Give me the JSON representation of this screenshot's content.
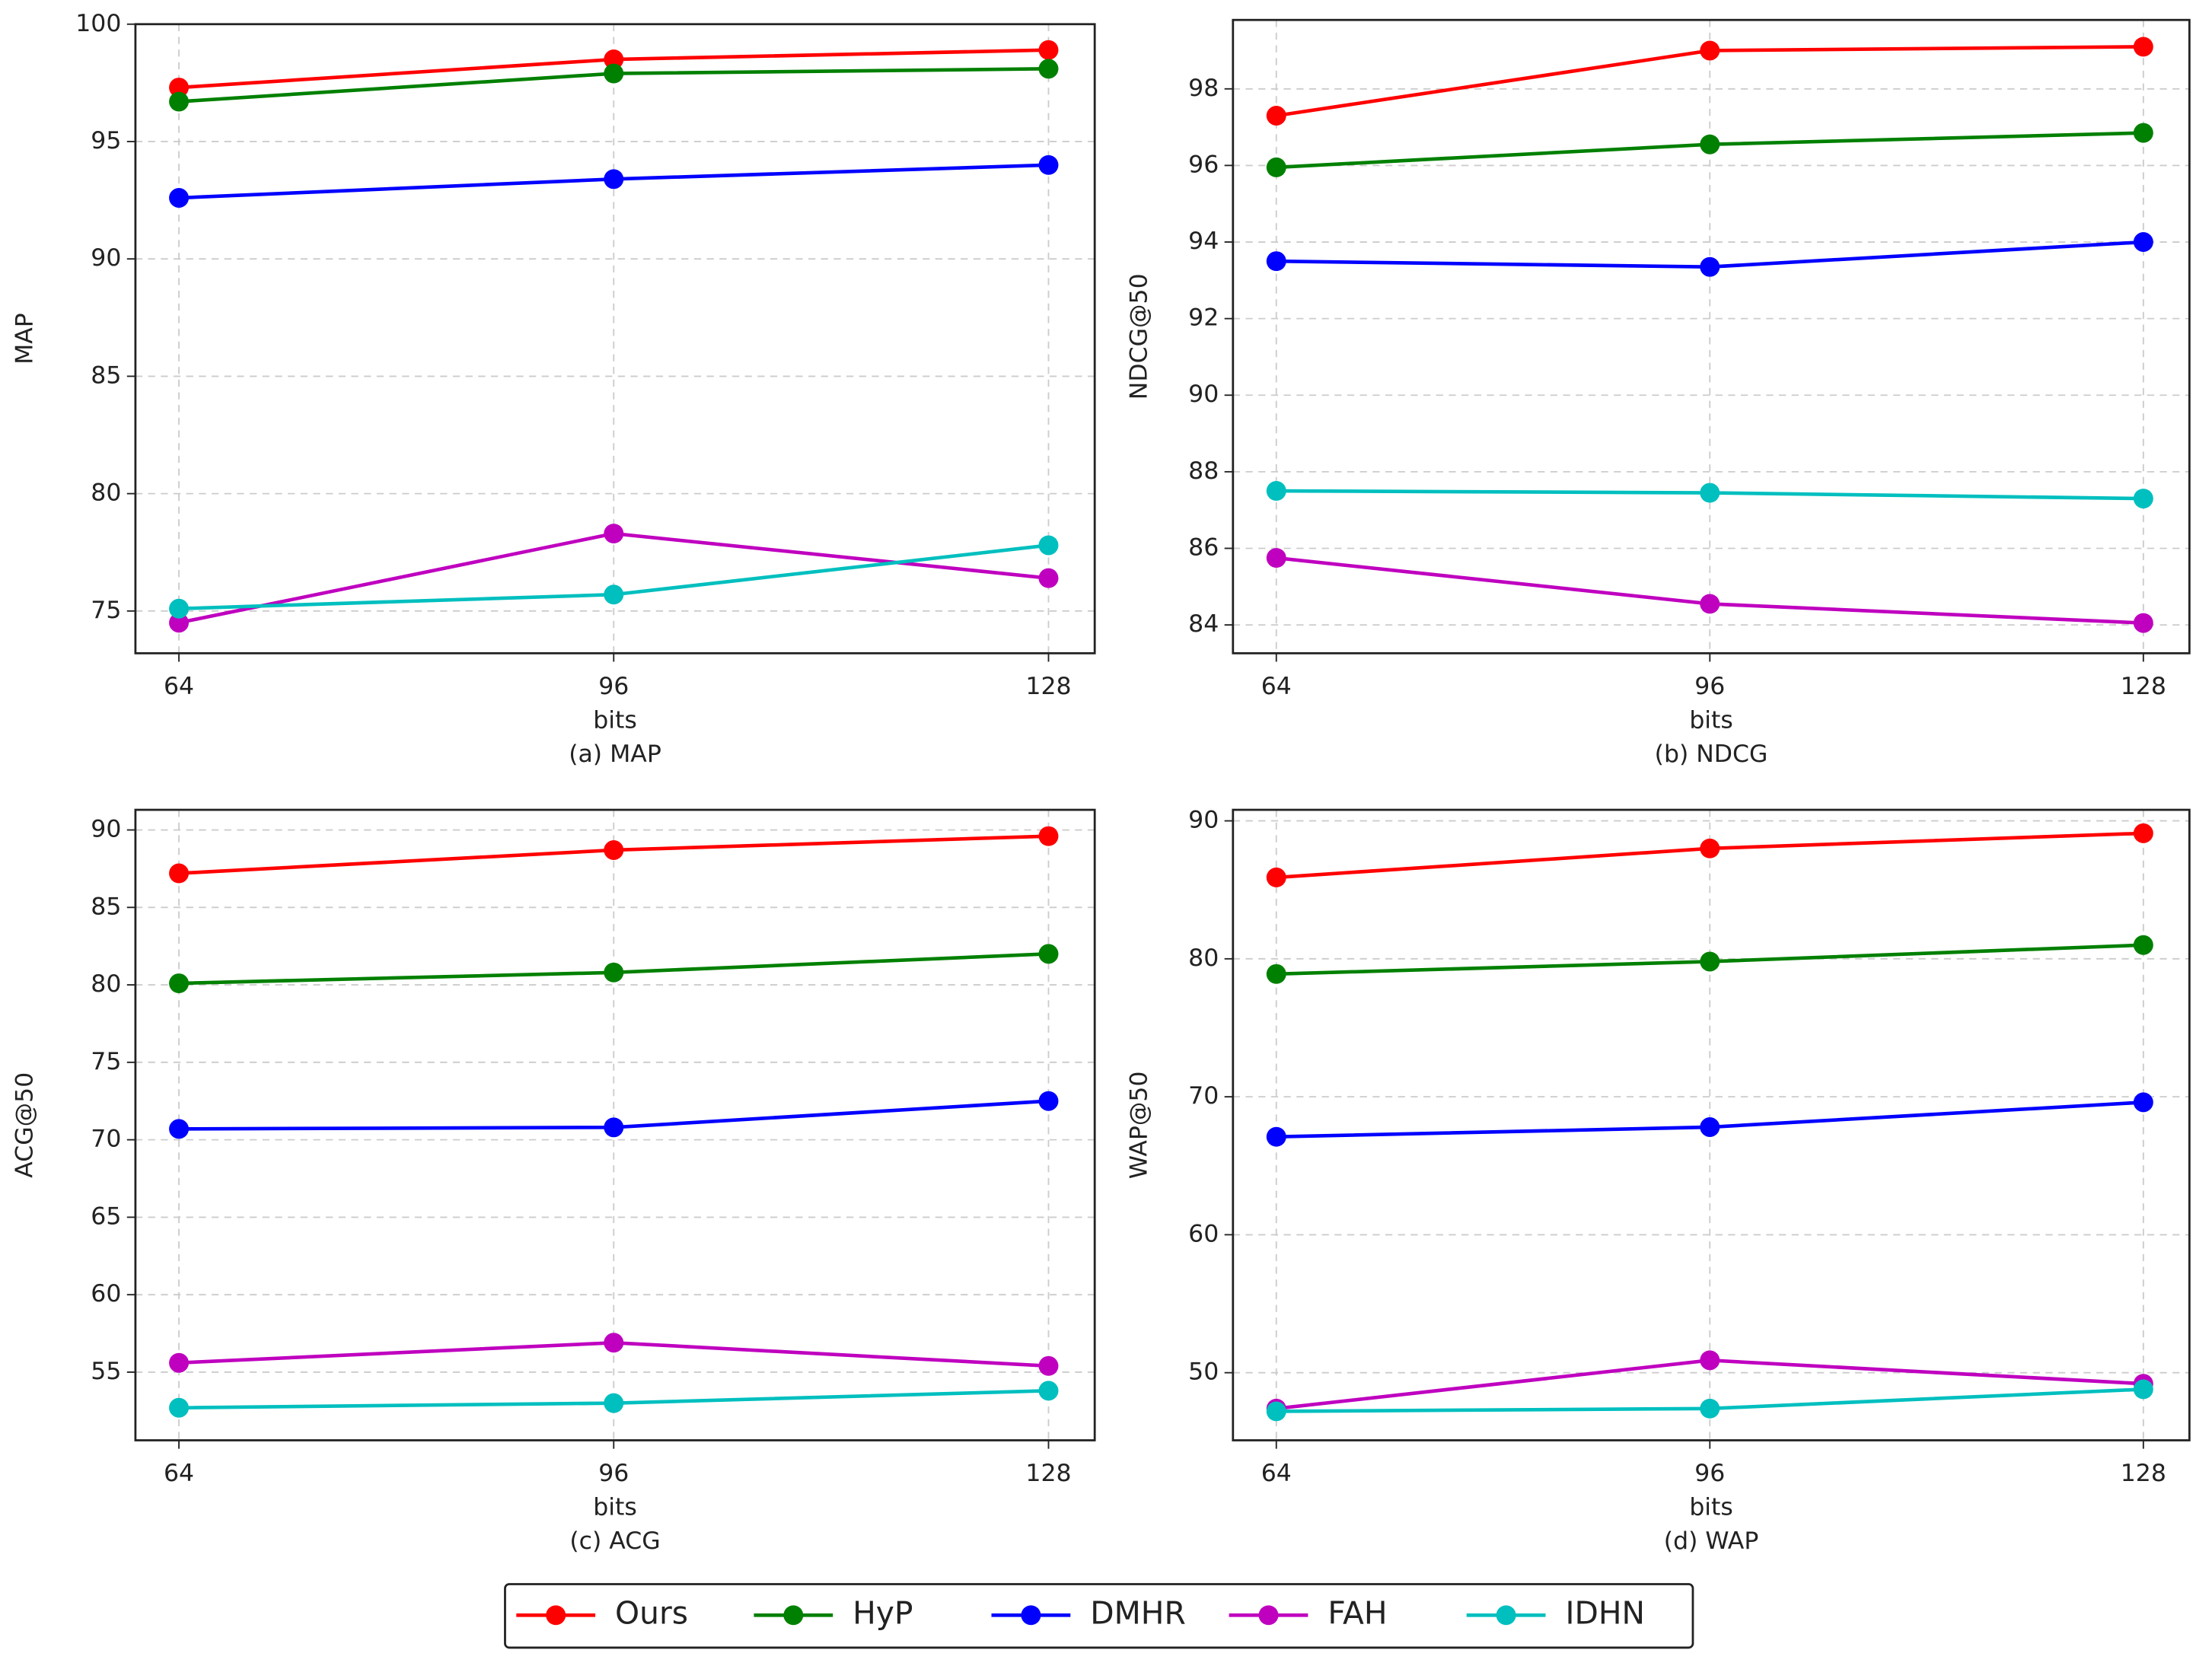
{
  "chart_data": [
    {
      "type": "line",
      "caption": "(a) MAP",
      "xlabel": "bits",
      "ylabel": "MAP",
      "x": [
        64,
        96,
        128
      ],
      "xlim": [
        60.8,
        131.4
      ],
      "xticks": [
        64,
        96,
        128
      ],
      "ylim": [
        73.2,
        100
      ],
      "yticks": [
        75,
        80,
        85,
        90,
        95,
        100
      ],
      "grid": true,
      "series": [
        {
          "name": "Ours",
          "color": "#ff0000",
          "values": [
            97.3,
            98.5,
            98.9
          ]
        },
        {
          "name": "HyP",
          "color": "#008000",
          "values": [
            96.7,
            97.9,
            98.1
          ]
        },
        {
          "name": "DMHR",
          "color": "#0000ff",
          "values": [
            92.6,
            93.4,
            94.0
          ]
        },
        {
          "name": "FAH",
          "color": "#bf00bf",
          "values": [
            74.5,
            78.3,
            76.4
          ]
        },
        {
          "name": "IDHN",
          "color": "#00bfbf",
          "values": [
            75.1,
            75.7,
            77.8
          ]
        }
      ]
    },
    {
      "type": "line",
      "caption": "(b) NDCG",
      "xlabel": "bits",
      "ylabel": "NDCG@50",
      "x": [
        64,
        96,
        128
      ],
      "xlim": [
        60.8,
        131.4
      ],
      "xticks": [
        64,
        96,
        128
      ],
      "ylim": [
        83.26,
        99.8
      ],
      "yticks": [
        84,
        86,
        88,
        90,
        92,
        94,
        96,
        98
      ],
      "grid": true,
      "series": [
        {
          "name": "Ours",
          "color": "#ff0000",
          "values": [
            97.3,
            99.0,
            99.1
          ]
        },
        {
          "name": "HyP",
          "color": "#008000",
          "values": [
            95.95,
            96.55,
            96.85
          ]
        },
        {
          "name": "DMHR",
          "color": "#0000ff",
          "values": [
            93.5,
            93.35,
            94.0
          ]
        },
        {
          "name": "FAH",
          "color": "#bf00bf",
          "values": [
            85.75,
            84.55,
            84.05
          ]
        },
        {
          "name": "IDHN",
          "color": "#00bfbf",
          "values": [
            87.5,
            87.45,
            87.3
          ]
        }
      ]
    },
    {
      "type": "line",
      "caption": "(c) ACG",
      "xlabel": "bits",
      "ylabel": "ACG@50",
      "x": [
        64,
        96,
        128
      ],
      "xlim": [
        60.8,
        131.4
      ],
      "xticks": [
        64,
        96,
        128
      ],
      "ylim": [
        50.6,
        91.3
      ],
      "yticks": [
        55,
        60,
        65,
        70,
        75,
        80,
        85,
        90
      ],
      "grid": true,
      "series": [
        {
          "name": "Ours",
          "color": "#ff0000",
          "values": [
            87.2,
            88.7,
            89.6
          ]
        },
        {
          "name": "HyP",
          "color": "#008000",
          "values": [
            80.1,
            80.8,
            82.0
          ]
        },
        {
          "name": "DMHR",
          "color": "#0000ff",
          "values": [
            70.7,
            70.8,
            72.5
          ]
        },
        {
          "name": "FAH",
          "color": "#bf00bf",
          "values": [
            55.6,
            56.9,
            55.4
          ]
        },
        {
          "name": "IDHN",
          "color": "#00bfbf",
          "values": [
            52.7,
            53.0,
            53.8
          ]
        }
      ]
    },
    {
      "type": "line",
      "caption": "(d) WAP",
      "xlabel": "bits",
      "ylabel": "WAP@50",
      "x": [
        64,
        96,
        128
      ],
      "xlim": [
        60.8,
        131.4
      ],
      "xticks": [
        64,
        96,
        128
      ],
      "ylim": [
        45.1,
        90.8
      ],
      "yticks": [
        50,
        60,
        70,
        80,
        90
      ],
      "grid": true,
      "series": [
        {
          "name": "Ours",
          "color": "#ff0000",
          "values": [
            85.9,
            88.0,
            89.1
          ]
        },
        {
          "name": "HyP",
          "color": "#008000",
          "values": [
            78.9,
            79.8,
            81.0
          ]
        },
        {
          "name": "DMHR",
          "color": "#0000ff",
          "values": [
            67.1,
            67.8,
            69.6
          ]
        },
        {
          "name": "FAH",
          "color": "#bf00bf",
          "values": [
            47.4,
            50.9,
            49.2
          ]
        },
        {
          "name": "IDHN",
          "color": "#00bfbf",
          "values": [
            47.2,
            47.4,
            48.8
          ]
        }
      ]
    }
  ]
}
